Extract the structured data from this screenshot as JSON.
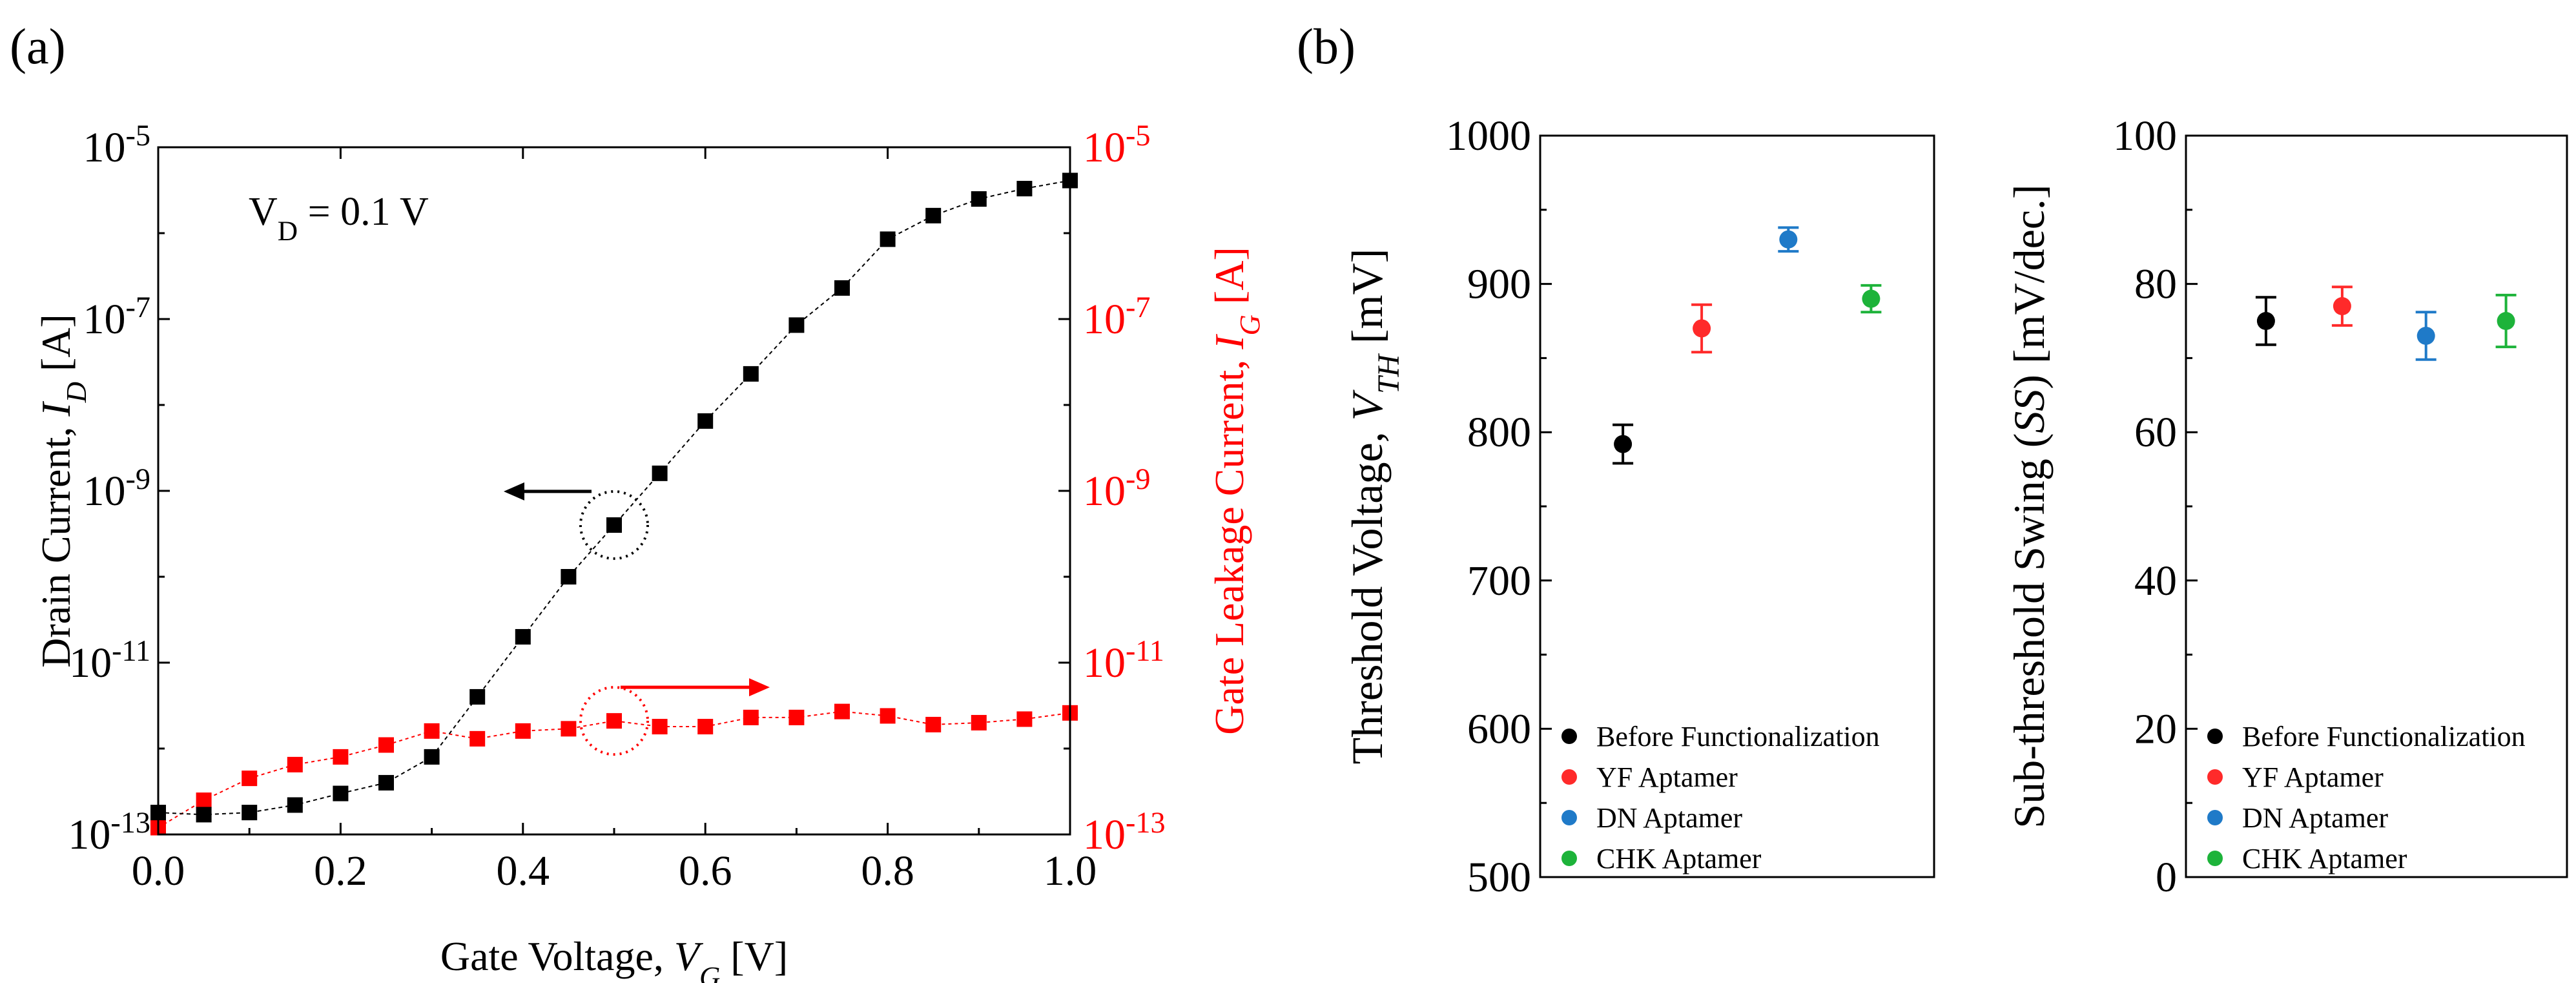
{
  "panel_a_label": "(a)",
  "panel_b_label": "(b)",
  "chart_data": [
    {
      "type": "scatter",
      "panel": "(a)",
      "xlabel": "Gate Voltage, V_G [V]",
      "ylabel_left": "Drain Current, I_D [A]",
      "ylabel_right": "Gate Leakage Current, I_G [A]",
      "xlim": [
        0,
        1
      ],
      "ylim": [
        1e-13,
        1e-05
      ],
      "yscale": "log",
      "x_ticks": [
        "0.0",
        "0.2",
        "0.4",
        "0.6",
        "0.8",
        "1.0"
      ],
      "y_ticks_exponents": [
        "-13",
        "-11",
        "-9",
        "-7",
        "-5"
      ],
      "annotation": "V_D = 0.1 V",
      "colors": {
        "drain": "#000000",
        "gate": "#ff0000"
      },
      "series": [
        {
          "axis": "left",
          "x": [
            0.0,
            0.05,
            0.1,
            0.15,
            0.2,
            0.25,
            0.3,
            0.35,
            0.4,
            0.45,
            0.5,
            0.55,
            0.6,
            0.65,
            0.7,
            0.75,
            0.8,
            0.85,
            0.9,
            0.95,
            1.0
          ],
          "y": [
            1.8e-13,
            1.7e-13,
            1.8e-13,
            2.2e-13,
            3e-13,
            4e-13,
            8e-13,
            4e-12,
            2e-11,
            1e-10,
            4e-10,
            1.6e-09,
            6.5e-09,
            2.3e-08,
            8.5e-08,
            2.3e-07,
            8.5e-07,
            1.6e-06,
            2.5e-06,
            3.3e-06,
            4.1e-06
          ]
        },
        {
          "axis": "right",
          "x": [
            0.0,
            0.05,
            0.1,
            0.15,
            0.2,
            0.25,
            0.3,
            0.35,
            0.4,
            0.45,
            0.5,
            0.55,
            0.6,
            0.65,
            0.7,
            0.75,
            0.8,
            0.85,
            0.9,
            0.95,
            1.0
          ],
          "y": [
            1.2e-13,
            2.5e-13,
            4.5e-13,
            6.5e-13,
            8e-13,
            1.1e-12,
            1.6e-12,
            1.3e-12,
            1.6e-12,
            1.7e-12,
            2.1e-12,
            1.8e-12,
            1.8e-12,
            2.3e-12,
            2.3e-12,
            2.7e-12,
            2.4e-12,
            1.9e-12,
            2e-12,
            2.2e-12,
            2.6e-12
          ]
        }
      ]
    },
    {
      "type": "scatter",
      "panel": "(b) left",
      "ylabel": "Threshold Voltage, V_TH [mV]",
      "ylim": [
        500,
        1000
      ],
      "y_ticks": [
        "500",
        "600",
        "700",
        "800",
        "900",
        "1000"
      ],
      "legend_position": "bottom-left",
      "series": [
        {
          "name": "Before Functionalization",
          "color": "#000000",
          "value": 792,
          "error": 13
        },
        {
          "name": "YF Aptamer",
          "color": "#ff2a2a",
          "value": 870,
          "error": 16
        },
        {
          "name": "DN Aptamer",
          "color": "#1f7ac8",
          "value": 930,
          "error": 8
        },
        {
          "name": "CHK Aptamer",
          "color": "#1db33a",
          "value": 890,
          "error": 9
        }
      ]
    },
    {
      "type": "scatter",
      "panel": "(b) right",
      "ylabel": "Sub-threshold Swing (SS) [mV/dec.]",
      "ylim": [
        0,
        100
      ],
      "y_ticks": [
        "0",
        "20",
        "40",
        "60",
        "80",
        "100"
      ],
      "legend_position": "bottom-left",
      "series": [
        {
          "name": "Before Functionalization",
          "color": "#000000",
          "value": 75,
          "error": 3.2
        },
        {
          "name": "YF Aptamer",
          "color": "#ff2a2a",
          "value": 77,
          "error": 2.6
        },
        {
          "name": "DN Aptamer",
          "color": "#1f7ac8",
          "value": 73,
          "error": 3.2
        },
        {
          "name": "CHK Aptamer",
          "color": "#1db33a",
          "value": 75,
          "error": 3.5
        }
      ]
    }
  ]
}
